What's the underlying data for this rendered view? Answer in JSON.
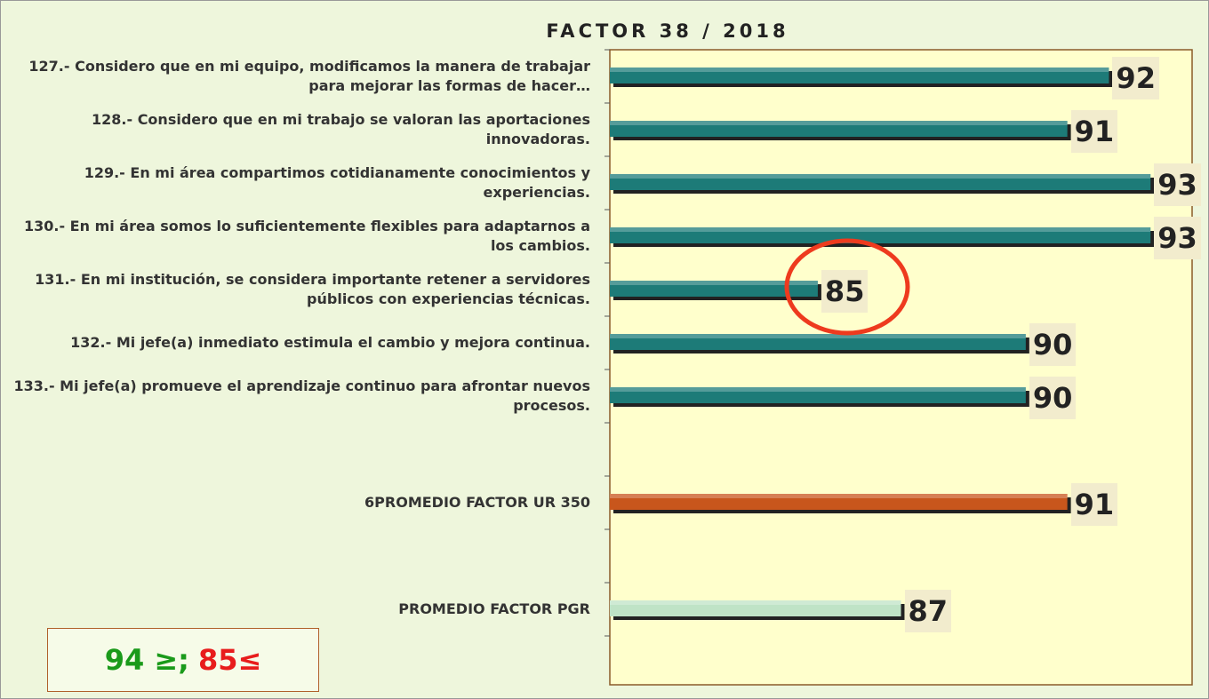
{
  "chart_data": {
    "type": "bar",
    "orientation": "horizontal",
    "title": "FACTOR 38 / 2018",
    "categories": [
      "127.- Considero que en mi equipo, modificamos la manera de trabajar para mejorar las formas de hacer…",
      "128.- Considero que en mi trabajo se valoran las aportaciones innovadoras.",
      "129.- En mi área compartimos cotidianamente conocimientos y experiencias.",
      "130.- En mi área somos lo suficientemente flexibles para adaptarnos a los cambios.",
      "131.- En mi institución, se considera importante retener a servidores públicos con experiencias técnicas.",
      "132.- Mi jefe(a) inmediato estimula el cambio y mejora continua.",
      "133.- Mi jefe(a) promueve el aprendizaje continuo para afrontar nuevos procesos.",
      null,
      "6PROMEDIO FACTOR UR 350",
      null,
      "PROMEDIO FACTOR PGR"
    ],
    "values": [
      92,
      91,
      93,
      93,
      85,
      90,
      90,
      null,
      91,
      null,
      87
    ],
    "colors": [
      "#1d7b78",
      "#1d7b78",
      "#1d7b78",
      "#1d7b78",
      "#1d7b78",
      "#1d7b78",
      "#1d7b78",
      null,
      "#c8561c",
      null,
      "#bfe3c6"
    ],
    "xlim": [
      80,
      94
    ],
    "annotations": [
      {
        "text": "94 ≥;",
        "color": "#1a9a1a"
      },
      {
        "text": "85≤",
        "color": "#e81c1c"
      }
    ]
  }
}
